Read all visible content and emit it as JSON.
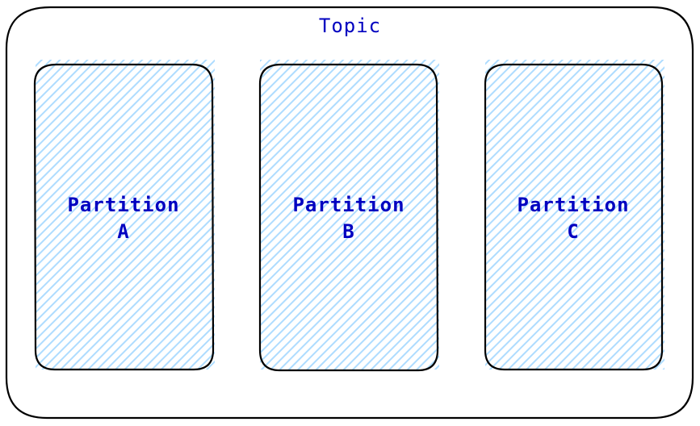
{
  "topic": {
    "label": "Topic"
  },
  "partitions": [
    {
      "line1": "Partition",
      "line2": "A"
    },
    {
      "line1": "Partition",
      "line2": "B"
    },
    {
      "line1": "Partition",
      "line2": "C"
    }
  ],
  "colors": {
    "text": "#0000c0",
    "stroke": "#000000",
    "hatch": "#a5d8ff"
  }
}
